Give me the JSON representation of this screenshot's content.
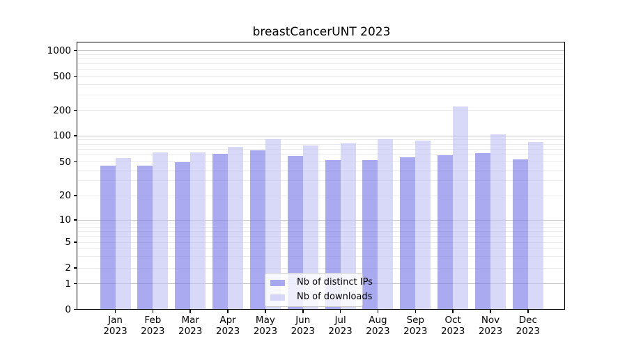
{
  "chart_data": {
    "type": "bar",
    "title": "breastCancerUNT 2023",
    "categories": [
      "Jan 2023",
      "Feb 2023",
      "Mar 2023",
      "Apr 2023",
      "May 2023",
      "Jun 2023",
      "Jul 2023",
      "Aug 2023",
      "Sep 2023",
      "Oct 2023",
      "Nov 2023",
      "Dec 2023"
    ],
    "series": [
      {
        "name": "Nb of distinct IPs",
        "color": "#7c7ce8",
        "alpha": 0.65,
        "values": [
          45,
          45,
          50,
          62,
          68,
          58,
          52,
          52,
          56,
          60,
          63,
          53
        ]
      },
      {
        "name": "Nb of downloads",
        "color": "#c3c3f4",
        "alpha": 0.65,
        "values": [
          55,
          64,
          64,
          75,
          92,
          77,
          82,
          92,
          88,
          220,
          103,
          85
        ]
      }
    ],
    "yscale": "symlog",
    "yticks": [
      0,
      1,
      2,
      5,
      10,
      20,
      50,
      100,
      200,
      500,
      1000
    ],
    "ylim": [
      0,
      1200
    ],
    "xlabel": "",
    "ylabel": "",
    "grid": "both",
    "legend_position": "lower center",
    "colors": {
      "background": "#ffffff",
      "spine": "#000000",
      "major_grid": "#c6c6c6",
      "minor_grid": "#eaeaea",
      "legend_border": "#cccccc"
    }
  }
}
